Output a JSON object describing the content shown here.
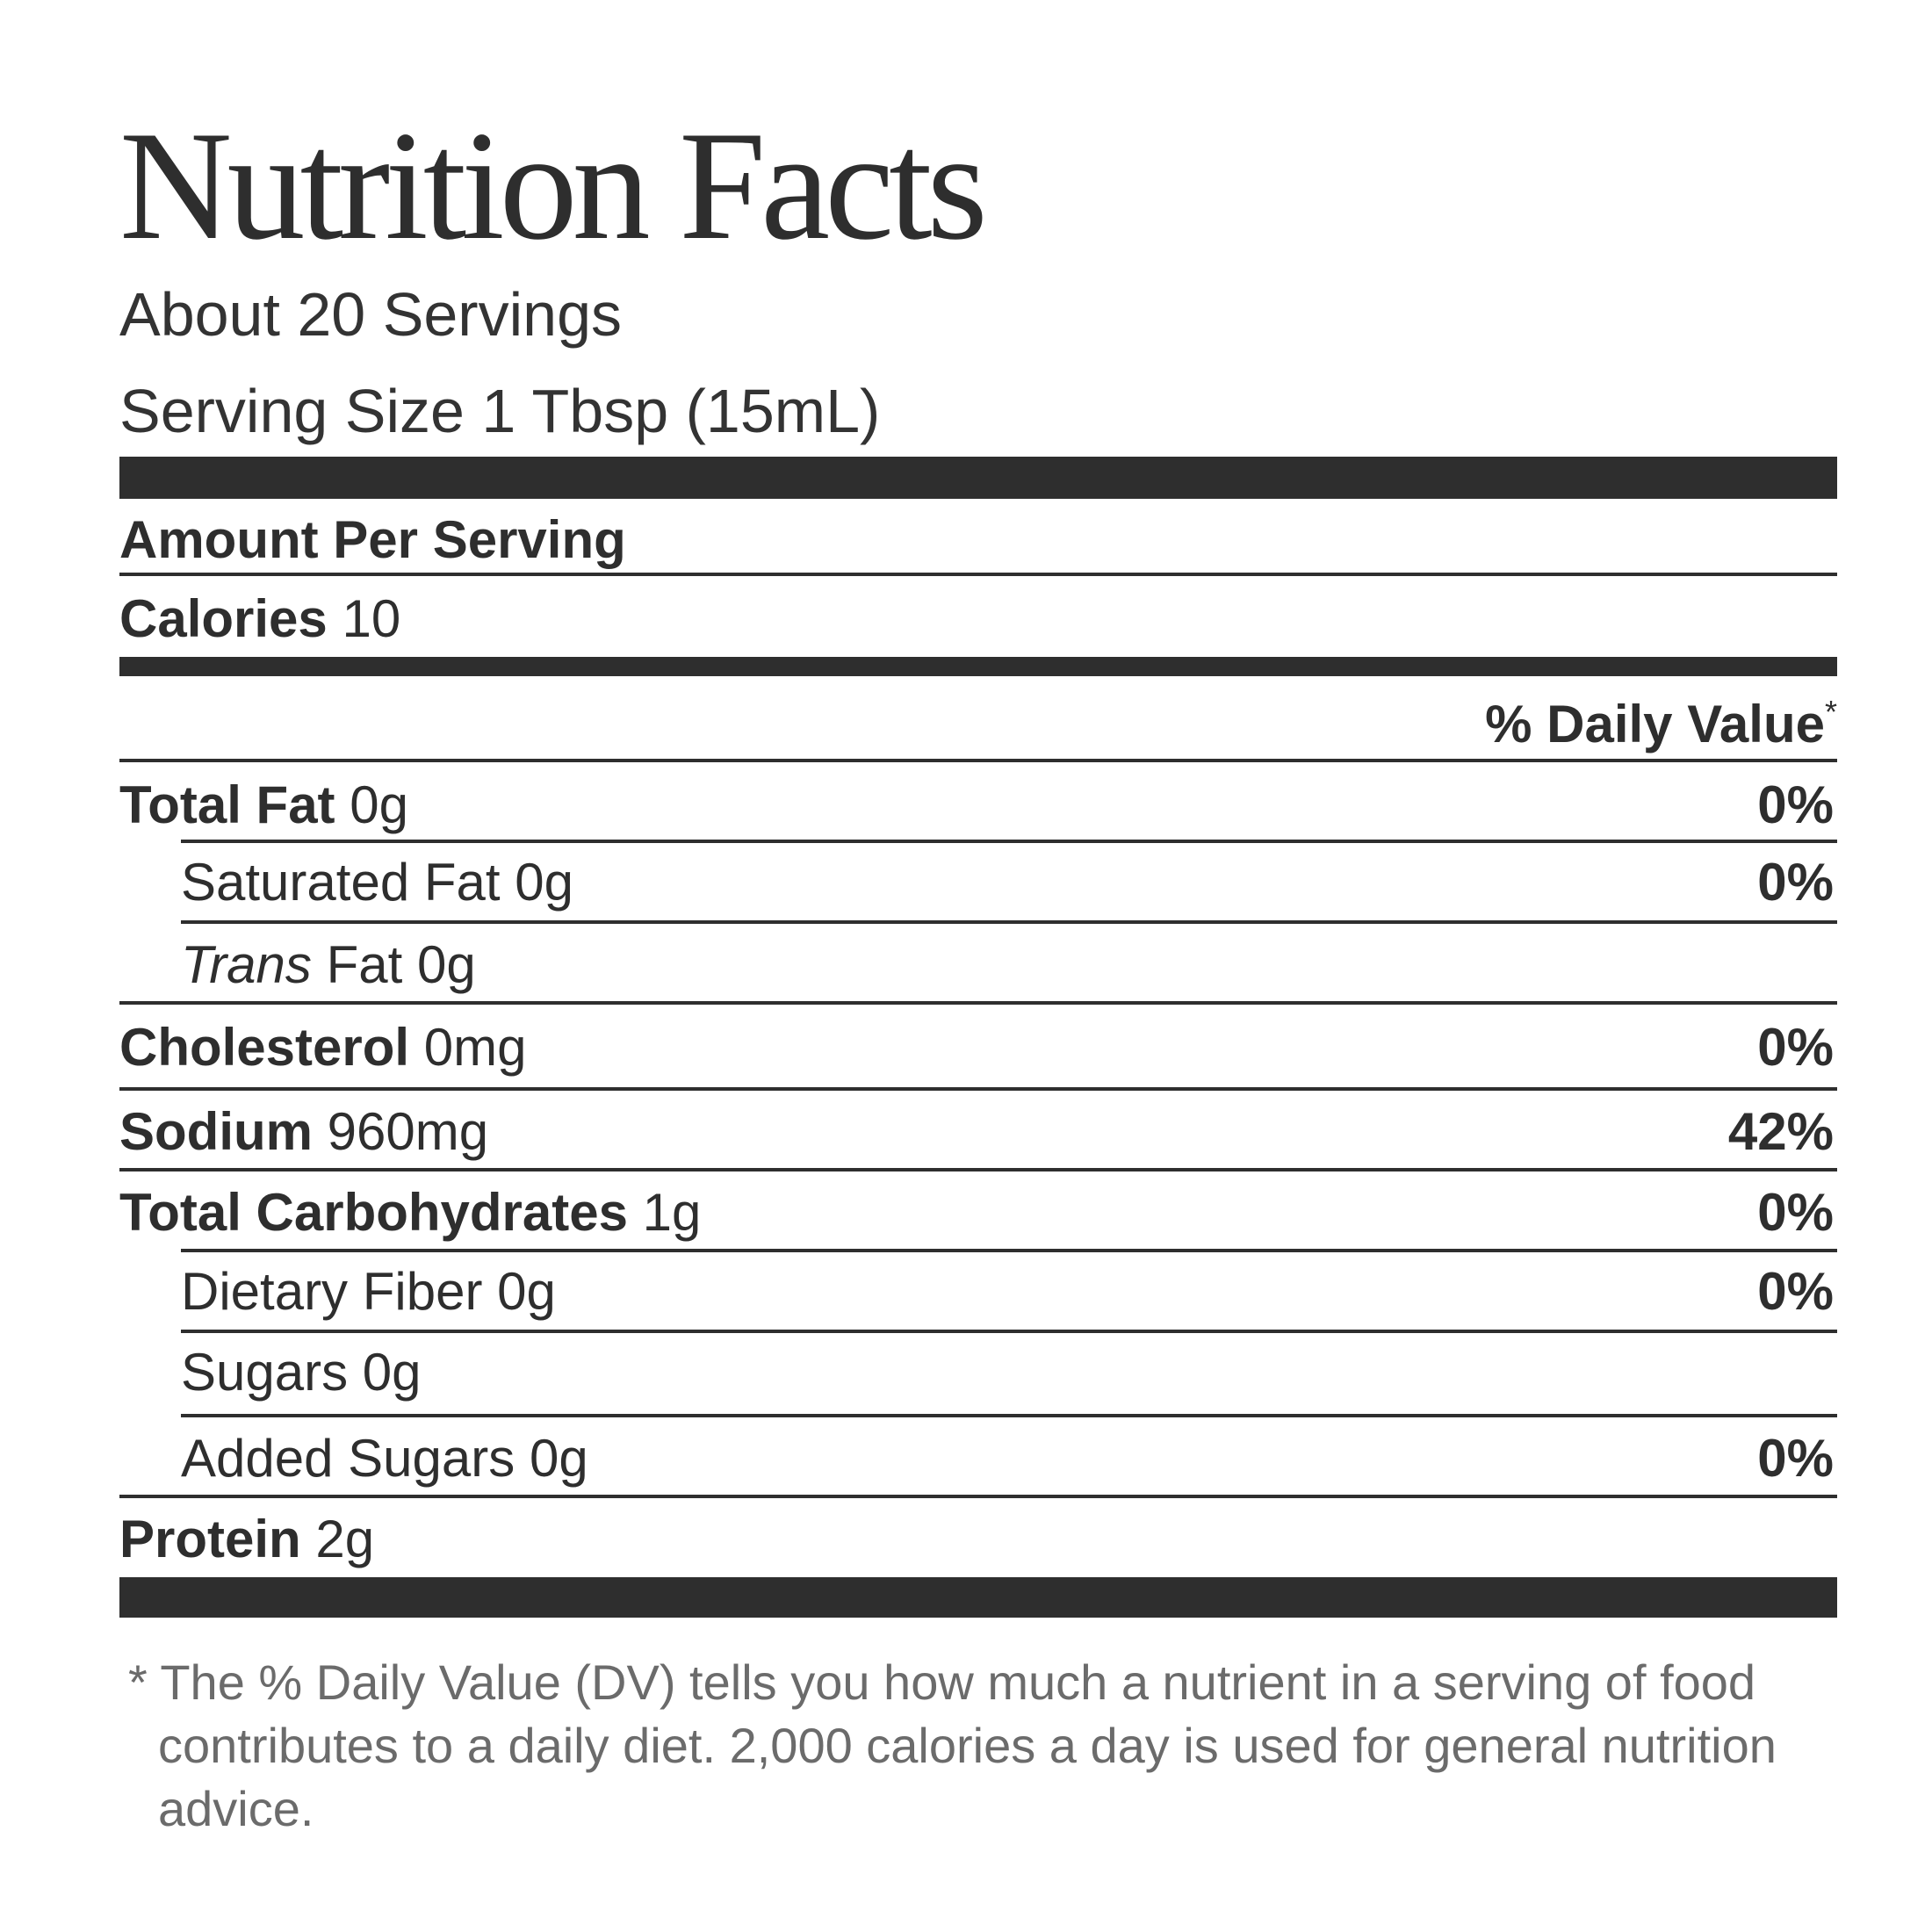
{
  "label": {
    "title": "Nutrition Facts",
    "servings": "About 20 Servings",
    "serving_size": "Serving Size 1 Tbsp (15mL)",
    "amount_per_serving": "Amount Per Serving",
    "calories_label": "Calories",
    "calories_value": "10",
    "daily_value_header": "% Daily Value",
    "daily_value_marker": "*",
    "nutrients": [
      {
        "name": "Total Fat",
        "amount": "0g",
        "dv": "0%"
      },
      {
        "name": "Saturated Fat",
        "amount": "0g",
        "dv": "0%"
      },
      {
        "prefix": "Trans",
        "name": "Fat",
        "amount": "0g",
        "dv": ""
      },
      {
        "name": "Cholesterol",
        "amount": "0mg",
        "dv": "0%"
      },
      {
        "name": "Sodium",
        "amount": "960mg",
        "dv": "42%"
      },
      {
        "name": "Total Carbohydrates",
        "amount": "1g",
        "dv": "0%"
      },
      {
        "name": "Dietary Fiber",
        "amount": "0g",
        "dv": "0%"
      },
      {
        "name": "Sugars",
        "amount": "0g",
        "dv": ""
      },
      {
        "name": "Added Sugars",
        "amount": "0g",
        "dv": "0%"
      },
      {
        "name": "Protein",
        "amount": "2g",
        "dv": ""
      }
    ],
    "footnote": "* The % Daily Value (DV) tells you how much a nutrient in a serving of food contributes to a daily diet. 2,000 calories a day is used for general nutrition advice."
  }
}
